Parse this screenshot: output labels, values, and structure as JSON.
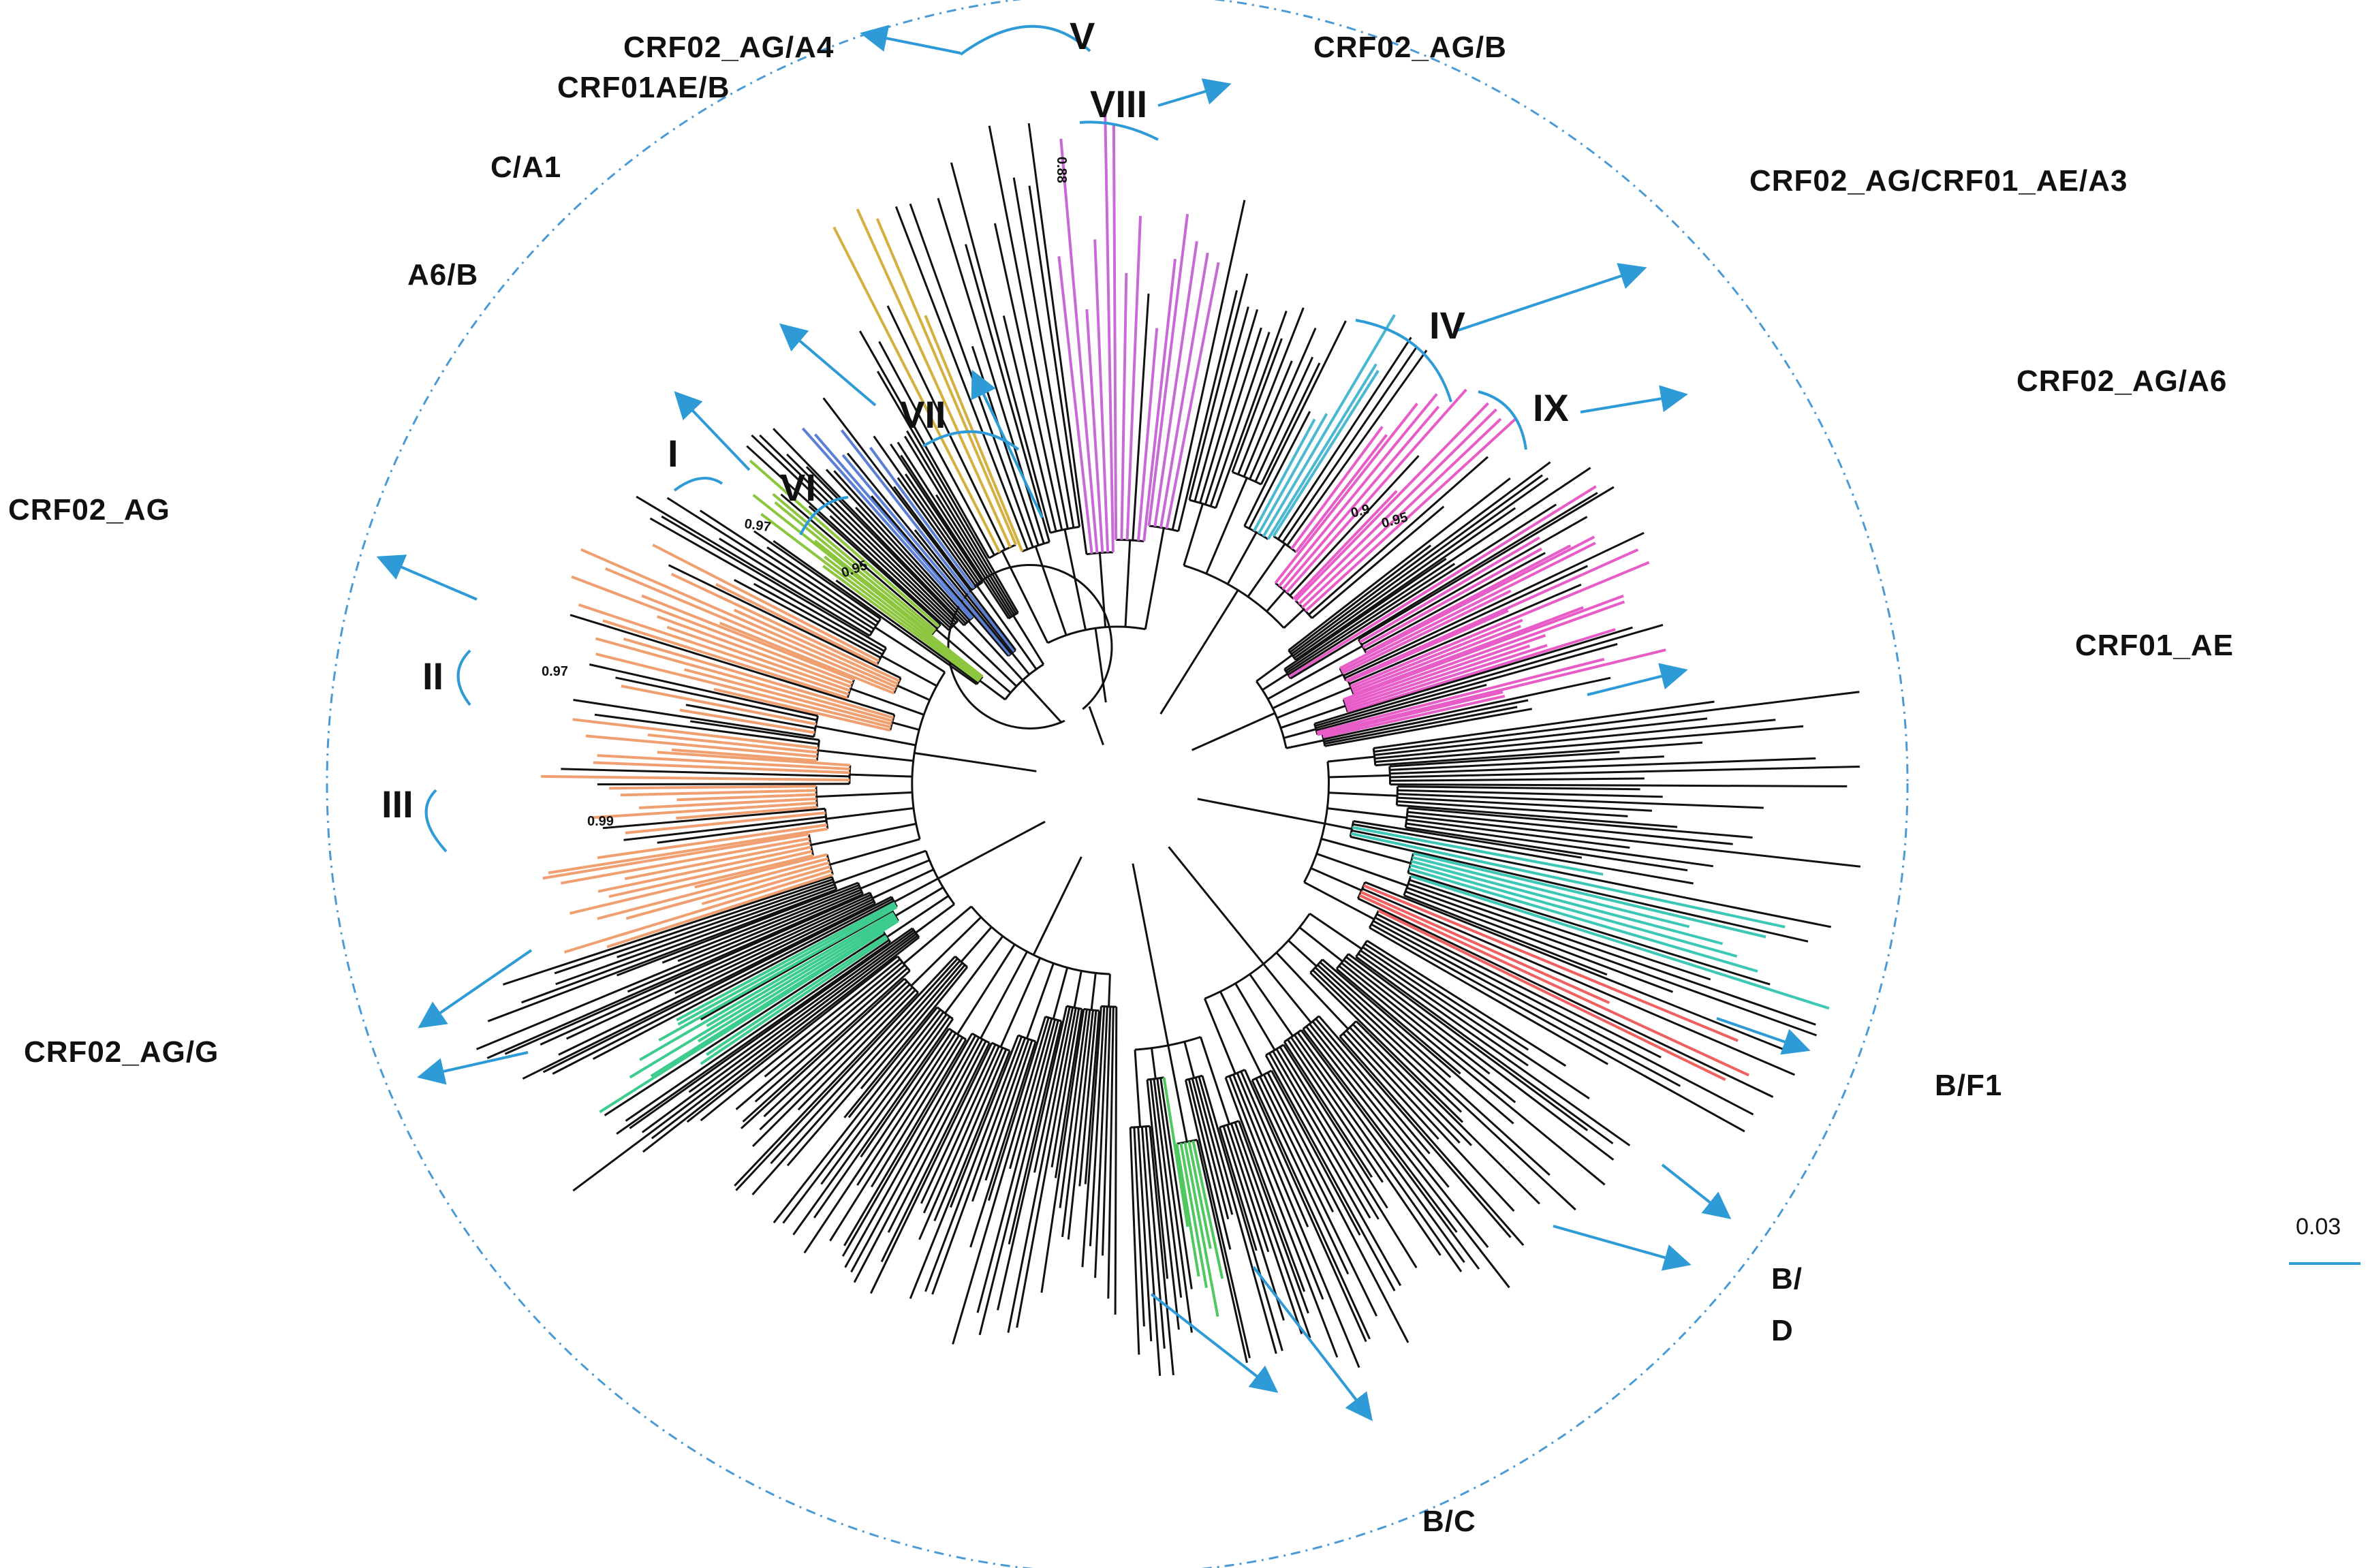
{
  "subtype_labels": [
    "CRF02_AG/A4",
    "CRF01AE/B",
    "CRF02_AG/B",
    "C/A1",
    "CRF02_AG/CRF01_AE/A3",
    "A6/B",
    "CRF02_AG/A6",
    "CRF02_AG",
    "CRF01_AE",
    "CRF02_AG/G",
    "B/F1",
    "B/",
    "D",
    "B/C"
  ],
  "clade_labels": [
    "V",
    "VIII",
    "IV",
    "IX",
    "VII",
    "I",
    "VI",
    "II",
    "III"
  ],
  "support_values": [
    "0.88",
    "0.97",
    "0.9",
    "0.97",
    "0.99",
    "0.95",
    "0.95"
  ],
  "scale_bar": {
    "label": "0.03"
  },
  "colors": {
    "branch_default": "#111111",
    "arrow": "#2e9bd6",
    "dashed_circle": "#4a9ad6",
    "clade_I_II_III": "#f0a070",
    "clade_IV_CRF01_AE": "#e85cc8",
    "clade_V": "#c86ad6",
    "clade_VI": "#8cc63f",
    "clade_VII": "#5b7fd6",
    "clade_VIII": "#d4b040",
    "clade_IX": "#4ab8d0",
    "recomb_G": "#3ccc8e",
    "recomb_F1": "#3cc8b4",
    "recomb_D": "#f06060",
    "recomb_C": "#50c860"
  },
  "icons": [
    "arrow-icon",
    "clade-bracket-icon"
  ]
}
